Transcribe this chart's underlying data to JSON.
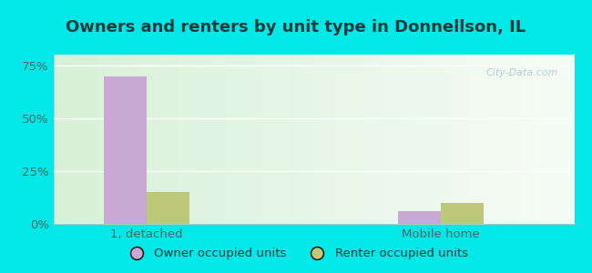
{
  "title": "Owners and renters by unit type in Donnellson, IL",
  "categories": [
    "1, detached",
    "Mobile home"
  ],
  "owner_values": [
    69.5,
    6.0
  ],
  "renter_values": [
    15.0,
    10.0
  ],
  "owner_color": "#c9a8d4",
  "renter_color": "#bec87a",
  "ylim": [
    0,
    80
  ],
  "yticks": [
    0,
    25,
    50,
    75
  ],
  "yticklabels": [
    "0%",
    "25%",
    "50%",
    "75%"
  ],
  "legend_owner": "Owner occupied units",
  "legend_renter": "Renter occupied units",
  "bar_width": 0.32,
  "group_positions": [
    1.0,
    3.2
  ],
  "xlim": [
    0.3,
    4.2
  ],
  "background_color": "#00e8e8",
  "watermark": "City-Data.com",
  "title_fontsize": 13,
  "axis_fontsize": 9.5,
  "title_color": "#1a3a3a"
}
